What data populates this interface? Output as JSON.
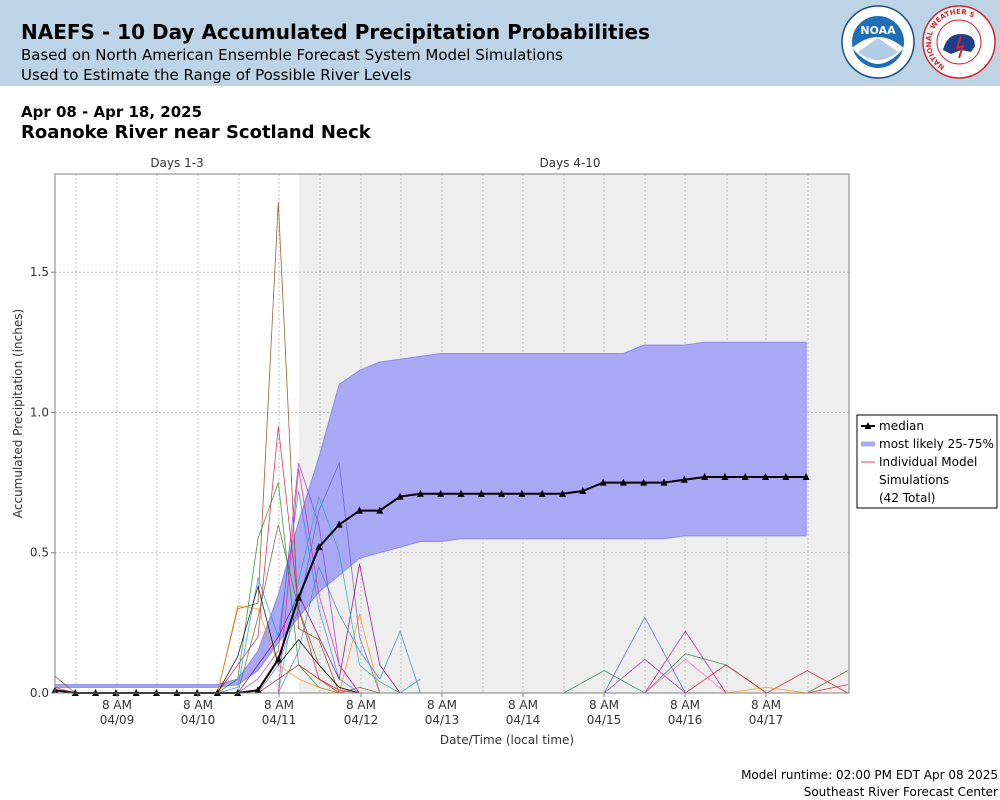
{
  "header": {
    "title": "NAEFS - 10 Day Accumulated Precipitation Probabilities",
    "subtitle1": "Based on North American Ensemble Forecast System Model Simulations",
    "subtitle2": "Used to Estimate the Range of Possible River Levels"
  },
  "logos": {
    "noaa": {
      "text": "NOAA",
      "icon": "noaa-logo-icon",
      "color": "#1f6fb8"
    },
    "nws": {
      "text": "NATIONAL WEATHER SERVICE",
      "icon": "nws-logo-icon",
      "color": "#d6242a"
    }
  },
  "date_range": "Apr 08 - Apr 18, 2025",
  "location": "Roanoke River near Scotland Neck",
  "footer": {
    "runtime": "Model runtime: 02:00 PM EDT Apr 08 2025",
    "center": "Southeast River Forecast Center"
  },
  "colors": {
    "band": "#a8a8f5",
    "band_edge": "#8b8be8",
    "median": "#000000",
    "shade": "#eeeeee"
  },
  "chart_data": {
    "type": "line",
    "xlabel": "Date/Time (local time)",
    "ylabel": "Accumulated Precipitation (inches)",
    "ylim": [
      0,
      1.85
    ],
    "yticks": [
      "0.0",
      "0.5",
      "1.0",
      "1.5"
    ],
    "xticks": [
      {
        "time": "8 AM",
        "date": "04/09"
      },
      {
        "time": "8 AM",
        "date": "04/10"
      },
      {
        "time": "8 AM",
        "date": "04/11"
      },
      {
        "time": "8 AM",
        "date": "04/12"
      },
      {
        "time": "8 AM",
        "date": "04/13"
      },
      {
        "time": "8 AM",
        "date": "04/14"
      },
      {
        "time": "8 AM",
        "date": "04/15"
      },
      {
        "time": "8 AM",
        "date": "04/16"
      },
      {
        "time": "8 AM",
        "date": "04/17"
      }
    ],
    "regions": [
      "Days 1-3",
      "Days 4-10"
    ],
    "legend": {
      "placement": "right",
      "entries": [
        "median",
        "most likely 25-75%",
        "Individual Model",
        "Simulations",
        "(42 Total)"
      ]
    },
    "grid": true,
    "median": [
      0.01,
      0.0,
      0.0,
      0.0,
      0.0,
      0.0,
      0.0,
      0.0,
      0.0,
      0.0,
      0.01,
      0.12,
      0.34,
      0.52,
      0.6,
      0.65,
      0.65,
      0.7,
      0.71,
      0.71,
      0.71,
      0.71,
      0.71,
      0.71,
      0.71,
      0.71,
      0.72,
      0.75,
      0.75,
      0.75,
      0.75,
      0.76,
      0.77,
      0.77,
      0.77,
      0.77,
      0.77,
      0.77
    ],
    "p25": [
      0.02,
      0.02,
      0.02,
      0.02,
      0.02,
      0.02,
      0.02,
      0.02,
      0.02,
      0.03,
      0.08,
      0.18,
      0.27,
      0.36,
      0.42,
      0.48,
      0.5,
      0.52,
      0.54,
      0.54,
      0.55,
      0.55,
      0.55,
      0.55,
      0.55,
      0.55,
      0.55,
      0.55,
      0.55,
      0.55,
      0.55,
      0.56,
      0.56,
      0.56,
      0.56,
      0.56,
      0.56,
      0.56
    ],
    "p75": [
      0.03,
      0.03,
      0.03,
      0.03,
      0.03,
      0.03,
      0.03,
      0.03,
      0.03,
      0.05,
      0.15,
      0.35,
      0.61,
      0.84,
      1.1,
      1.15,
      1.18,
      1.19,
      1.2,
      1.21,
      1.21,
      1.21,
      1.21,
      1.21,
      1.21,
      1.21,
      1.21,
      1.21,
      1.21,
      1.24,
      1.24,
      1.24,
      1.25,
      1.25,
      1.25,
      1.25,
      1.25,
      1.25
    ],
    "simulations": [
      {
        "color": "#8b4513",
        "values": [
          0.06,
          0.0,
          0.0,
          0.0,
          0.0,
          0.0,
          0.0,
          0.0,
          0.0,
          0.3,
          0.32,
          1.75,
          0.23,
          0.19,
          0.0,
          0.02,
          0.0,
          0.0,
          0.0
        ]
      },
      {
        "color": "#dc143c",
        "values": [
          0.02,
          0.0,
          0.0,
          0.0,
          0.0,
          0.0,
          0.0,
          0.0,
          0.0,
          0.1,
          0.2,
          0.95,
          0.3,
          0.05,
          0.01,
          0.0,
          0.0,
          0.0,
          0.0
        ]
      },
      {
        "color": "#228b22",
        "values": [
          0.0,
          0.0,
          0.0,
          0.0,
          0.0,
          0.0,
          0.0,
          0.0,
          0.0,
          0.05,
          0.55,
          0.75,
          0.1,
          0.02,
          0.0,
          0.0,
          0.0,
          0.0,
          0.0
        ]
      },
      {
        "color": "#9932cc",
        "values": [
          0.01,
          0.0,
          0.0,
          0.0,
          0.0,
          0.0,
          0.0,
          0.0,
          0.0,
          0.0,
          0.05,
          0.15,
          0.82,
          0.6,
          0.1,
          0.0,
          0.0,
          0.0,
          0.0
        ]
      },
      {
        "color": "#1e90ff",
        "values": [
          0.0,
          0.0,
          0.0,
          0.0,
          0.0,
          0.0,
          0.0,
          0.0,
          0.0,
          0.02,
          0.41,
          0.2,
          0.72,
          0.3,
          0.05,
          0.0,
          0.0,
          0.0,
          0.0
        ]
      },
      {
        "color": "#ff8c00",
        "values": [
          0.0,
          0.0,
          0.0,
          0.0,
          0.0,
          0.0,
          0.0,
          0.0,
          0.0,
          0.31,
          0.3,
          0.1,
          0.05,
          0.02,
          0.0,
          0.28,
          0.0,
          0.0,
          0.0
        ]
      },
      {
        "color": "#6a5acd",
        "values": [
          0.0,
          0.0,
          0.0,
          0.0,
          0.0,
          0.0,
          0.0,
          0.0,
          0.0,
          0.0,
          0.0,
          0.1,
          0.3,
          0.65,
          0.82,
          0.2,
          0.0,
          0.0,
          0.0
        ]
      },
      {
        "color": "#800080",
        "values": [
          0.0,
          0.0,
          0.0,
          0.0,
          0.0,
          0.0,
          0.0,
          0.0,
          0.0,
          0.0,
          0.1,
          0.2,
          0.35,
          0.2,
          0.05,
          0.46,
          0.1,
          0.0,
          0.0
        ]
      },
      {
        "color": "#556b2f",
        "values": [
          0.0,
          0.0,
          0.0,
          0.0,
          0.0,
          0.0,
          0.0,
          0.0,
          0.0,
          0.0,
          0.27,
          0.6,
          0.3,
          0.1,
          0.02,
          0.0,
          0.0,
          0.0,
          0.0
        ]
      },
      {
        "color": "#20b2aa",
        "values": [
          0.0,
          0.0,
          0.0,
          0.0,
          0.0,
          0.0,
          0.0,
          0.0,
          0.0,
          0.0,
          0.0,
          0.0,
          0.4,
          0.7,
          0.5,
          0.1,
          0.04,
          0.0,
          0.05
        ]
      },
      {
        "color": "#ff1493",
        "values": [
          0.0,
          0.0,
          0.0,
          0.0,
          0.0,
          0.0,
          0.0,
          0.0,
          0.0,
          0.0,
          0.0,
          0.0,
          0.8,
          0.35,
          0.1,
          0.0,
          0.0,
          0.0,
          0.0
        ]
      },
      {
        "color": "#4682b4",
        "values": [
          0.0,
          0.0,
          0.0,
          0.0,
          0.0,
          0.0,
          0.0,
          0.0,
          0.0,
          0.0,
          0.0,
          0.0,
          0.15,
          0.45,
          0.28,
          0.15,
          0.05,
          0.22,
          0.0
        ]
      },
      {
        "color": "#000000",
        "values": [
          0.0,
          0.0,
          0.0,
          0.0,
          0.0,
          0.0,
          0.0,
          0.0,
          0.0,
          0.13,
          0.38,
          0.1,
          0.19,
          0.1,
          0.02,
          0.0,
          0.0,
          0.0,
          0.0
        ]
      },
      {
        "color": "#b22222",
        "values": [
          0.0,
          0.0,
          0.0,
          0.0,
          0.0,
          0.0,
          0.0,
          0.0,
          0.0,
          0.0,
          0.0,
          0.05,
          0.1,
          0.05,
          0.0,
          0.0,
          0.0,
          0.0,
          0.0
        ]
      }
    ],
    "late_simulations": [
      {
        "color": "#2e8b57",
        "values": [
          0.0,
          0.0,
          0.08,
          0.0,
          0.14,
          0.1,
          0.0,
          0.0,
          0.0
        ]
      },
      {
        "color": "#4169e1",
        "values": [
          0.0,
          0.0,
          0.0,
          0.27,
          0.0,
          0.0,
          0.0,
          0.0,
          0.0
        ]
      },
      {
        "color": "#c71585",
        "values": [
          0.0,
          0.0,
          0.0,
          0.0,
          0.22,
          0.0,
          0.0,
          0.0,
          0.0
        ]
      },
      {
        "color": "#dc143c",
        "values": [
          0.0,
          0.0,
          0.0,
          0.0,
          0.0,
          0.1,
          0.0,
          0.08,
          0.0
        ]
      },
      {
        "color": "#556b2f",
        "values": [
          0.0,
          0.0,
          0.0,
          0.0,
          0.0,
          0.0,
          0.0,
          0.0,
          0.08
        ]
      },
      {
        "color": "#ff8c00",
        "values": [
          0.0,
          0.0,
          0.0,
          0.0,
          0.0,
          0.0,
          0.02,
          0.0,
          0.0
        ]
      },
      {
        "color": "#9932cc",
        "values": [
          0.0,
          0.0,
          0.0,
          0.12,
          0.0,
          0.0,
          0.0,
          0.0,
          0.0
        ]
      },
      {
        "color": "#b22222",
        "values": [
          0.0,
          0.0,
          0.0,
          0.0,
          0.0,
          0.0,
          0.0,
          0.0,
          0.03
        ]
      },
      {
        "color": "#ff69b4",
        "values": [
          0.0,
          0.0,
          0.0,
          0.0,
          0.12,
          0.0,
          0.0,
          0.0,
          0.0
        ]
      }
    ]
  }
}
